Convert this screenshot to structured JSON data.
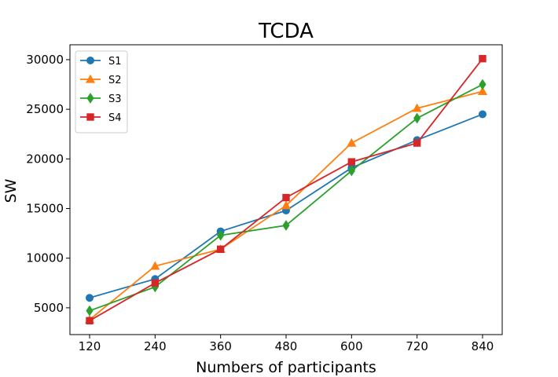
{
  "chart_data": {
    "type": "line",
    "title": "TCDA",
    "xlabel": "Numbers of participants",
    "ylabel": "SW",
    "x": [
      120,
      240,
      360,
      480,
      600,
      720,
      840
    ],
    "x_ticks": [
      "120",
      "240",
      "360",
      "480",
      "600",
      "720",
      "840"
    ],
    "y_ticks": [
      5000,
      10000,
      15000,
      20000,
      25000,
      30000
    ],
    "y_tick_labels": [
      "5000",
      "10000",
      "15000",
      "20000",
      "25000",
      "30000"
    ],
    "ylim": [
      2300,
      31500
    ],
    "grid": false,
    "legend_position": "top-left",
    "series": [
      {
        "name": "S1",
        "color": "#1f77b4",
        "marker": "circle",
        "values": [
          6000,
          7900,
          12700,
          14800,
          19100,
          21900,
          24500
        ]
      },
      {
        "name": "S2",
        "color": "#ff7f0e",
        "marker": "triangle",
        "values": [
          3800,
          9200,
          10900,
          15300,
          21600,
          25100,
          26800
        ]
      },
      {
        "name": "S3",
        "color": "#2ca02c",
        "marker": "diamond",
        "values": [
          4700,
          7100,
          12300,
          13300,
          18800,
          24100,
          27500
        ]
      },
      {
        "name": "S4",
        "color": "#d62728",
        "marker": "square",
        "values": [
          3700,
          7500,
          10900,
          16100,
          19700,
          21600,
          30100
        ]
      }
    ]
  }
}
